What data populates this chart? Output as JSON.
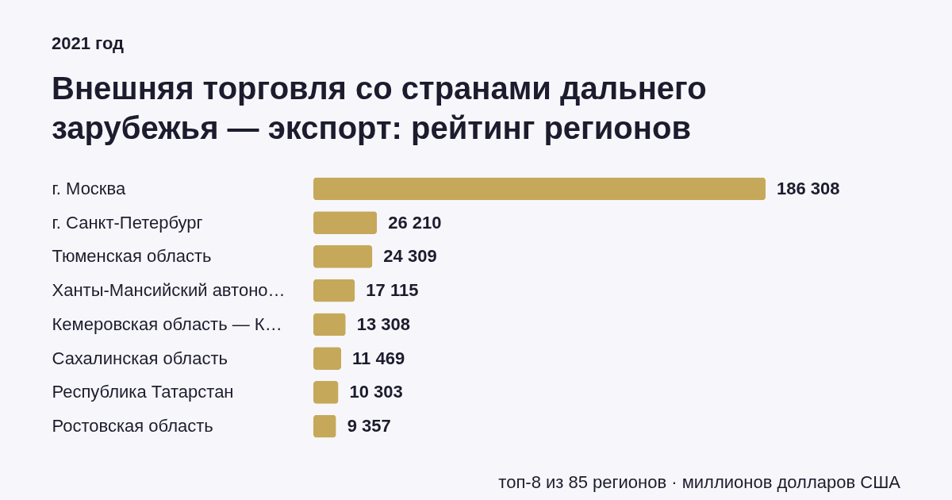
{
  "chart_data": {
    "type": "bar",
    "orientation": "horizontal",
    "title": "Внешняя торговля со странами дальнего зарубежья — экспорт: рейтинг регионов",
    "annotations": [
      "2021 год",
      "топ-8 из 85 регионов · миллионов долларов США"
    ],
    "categories": [
      "г. Москва",
      "г. Санкт-Петербург",
      "Тюменская область",
      "Ханты-Мансийский автоно…",
      "Кемеровская область — К…",
      "Сахалинская область",
      "Республика Татарстан",
      "Ростовская область"
    ],
    "values": [
      186308,
      26210,
      24309,
      17115,
      13308,
      11469,
      10303,
      9357
    ],
    "color": "#c6a85a",
    "data_labels": true
  }
}
